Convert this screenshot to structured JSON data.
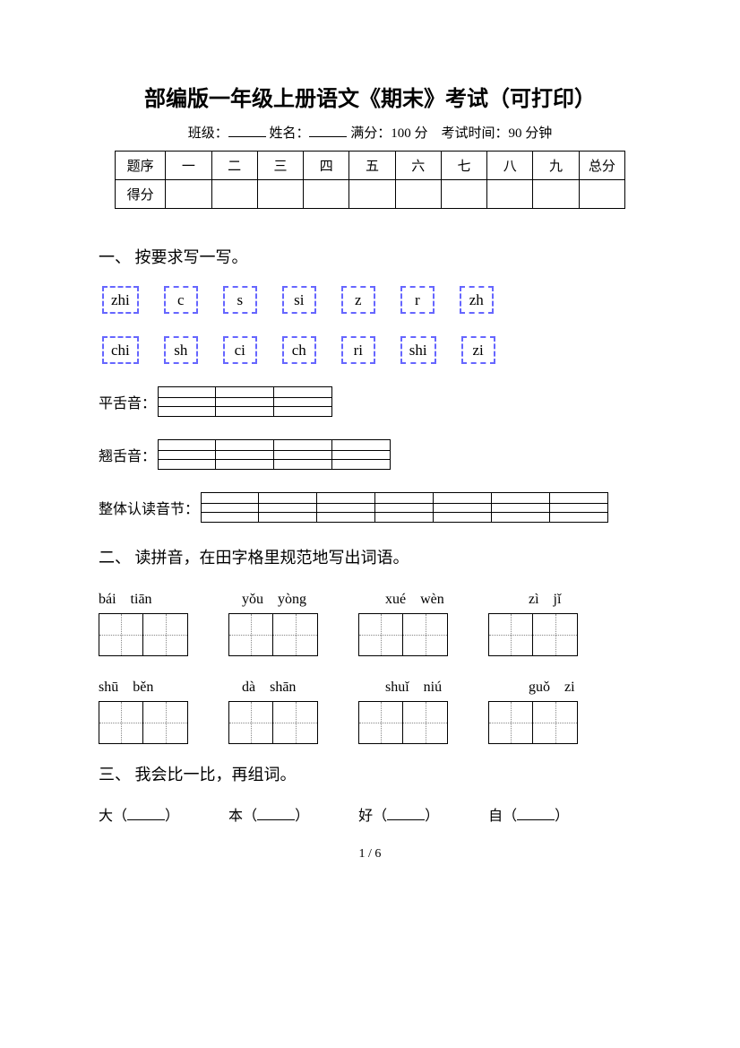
{
  "title": "部编版一年级上册语文《期末》考试（可打印）",
  "info": {
    "class_label": "班级：",
    "name_label": "姓名：",
    "fullscore_label": "满分：",
    "fullscore_value": "100 分",
    "time_label": "考试时间：",
    "time_value": "90 分钟"
  },
  "score_table": {
    "header_row": [
      "题序",
      "一",
      "二",
      "三",
      "四",
      "五",
      "六",
      "七",
      "八",
      "九",
      "总分"
    ],
    "score_row_label": "得分"
  },
  "section1": {
    "heading": "一、 按要求写一写。",
    "row1": [
      "zhi",
      "c",
      "s",
      "si",
      "z",
      "r",
      "zh"
    ],
    "row2": [
      "chi",
      "sh",
      "ci",
      "ch",
      "ri",
      "shi",
      "zi"
    ],
    "categories": {
      "flat": {
        "label": "平舌音：",
        "cells": 3
      },
      "curled": {
        "label": "翘舌音：",
        "cells": 4
      },
      "whole": {
        "label": "整体认读音节：",
        "cells": 7
      }
    }
  },
  "section2": {
    "heading": "二、 读拼音，在田字格里规范地写出词语。",
    "row1_pinyin": [
      "bái　tiān",
      "yǒu　yòng",
      "xué　wèn",
      "zì　jǐ"
    ],
    "row2_pinyin": [
      "shū　běn",
      "dà　shān",
      "shuǐ　niú",
      "guǒ　zi"
    ]
  },
  "section3": {
    "heading": "三、 我会比一比，再组词。",
    "items": [
      "大",
      "本",
      "好",
      "自"
    ]
  },
  "footer": "1 / 6"
}
